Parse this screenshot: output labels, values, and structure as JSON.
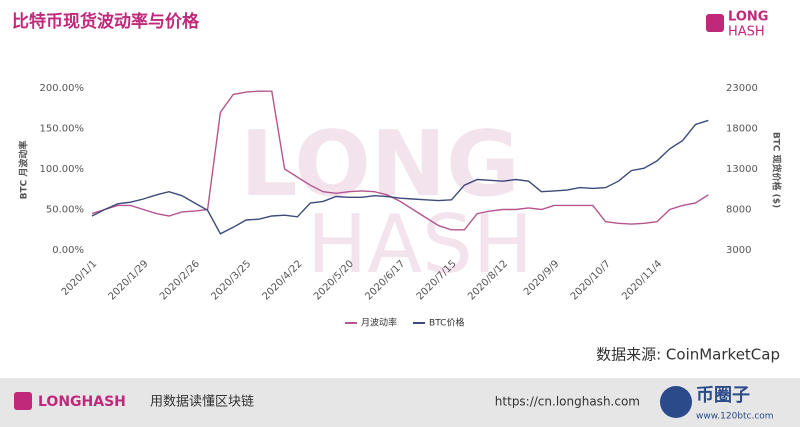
{
  "header": {
    "title": "比特币现货波动率与价格",
    "logo": [
      "LONG",
      "HASH"
    ]
  },
  "chart_data": {
    "type": "line",
    "categories": [
      "2020/1/1",
      null,
      null,
      null,
      "2020/1/29",
      null,
      null,
      null,
      "2020/2/26",
      null,
      null,
      null,
      "2020/3/25",
      null,
      null,
      null,
      "2020/4/22",
      null,
      null,
      null,
      "2020/5/20",
      null,
      null,
      null,
      "2020/6/17",
      null,
      null,
      null,
      "2020/7/15",
      null,
      null,
      null,
      "2020/8/12",
      null,
      null,
      null,
      "2020/9/9",
      null,
      null,
      null,
      "2020/10/7",
      null,
      null,
      null,
      "2020/11/4",
      null,
      null,
      null,
      null
    ],
    "ylabel": "BTC 月波动率",
    "y2label": "BTC 现货价格 ($)",
    "ylim": [
      0,
      200
    ],
    "yticks": [
      {
        "value": 0,
        "label": "0.00%"
      },
      {
        "value": 50,
        "label": "50.00%"
      },
      {
        "value": 100,
        "label": "100.00%"
      },
      {
        "value": 150,
        "label": "150.00%"
      },
      {
        "value": 200,
        "label": "200.00%"
      }
    ],
    "y2lim": [
      3000,
      23000
    ],
    "y2ticks": [
      3000,
      8000,
      13000,
      18000,
      23000
    ],
    "grid": false,
    "legend": "bottom",
    "series": [
      {
        "name": "月波动率",
        "color": "#b5568f",
        "values": [
          45,
          50,
          55,
          55,
          50,
          45,
          42,
          47,
          48,
          50,
          170,
          192,
          195,
          196,
          196,
          100,
          90,
          80,
          72,
          70,
          72,
          73,
          72,
          68,
          60,
          50,
          40,
          30,
          25,
          25,
          45,
          48,
          50,
          50,
          52,
          50,
          55,
          55,
          55,
          55,
          35,
          33,
          32,
          33,
          35,
          50,
          55,
          58,
          68
        ]
      },
      {
        "name": "BTC价格",
        "color": "#3d4a7a",
        "axis": "y2",
        "values": [
          7200,
          8000,
          8700,
          8900,
          9300,
          9800,
          10200,
          9700,
          8800,
          7900,
          5000,
          5800,
          6700,
          6800,
          7200,
          7300,
          7100,
          8800,
          9000,
          9600,
          9500,
          9500,
          9700,
          9600,
          9400,
          9300,
          9200,
          9100,
          9200,
          11000,
          11700,
          11600,
          11500,
          11700,
          11500,
          10200,
          10300,
          10400,
          10700,
          10600,
          10700,
          11500,
          12800,
          13100,
          14000,
          15500,
          16500,
          18500,
          19000
        ]
      }
    ]
  },
  "source": "数据来源: CoinMarketCap",
  "footer": {
    "logo": "LONGHASH",
    "slogan": "用数据读懂区块链",
    "url": "https://cn.longhash.com",
    "watermark": "币圈子",
    "watermark_url": "www.120btc.com"
  }
}
